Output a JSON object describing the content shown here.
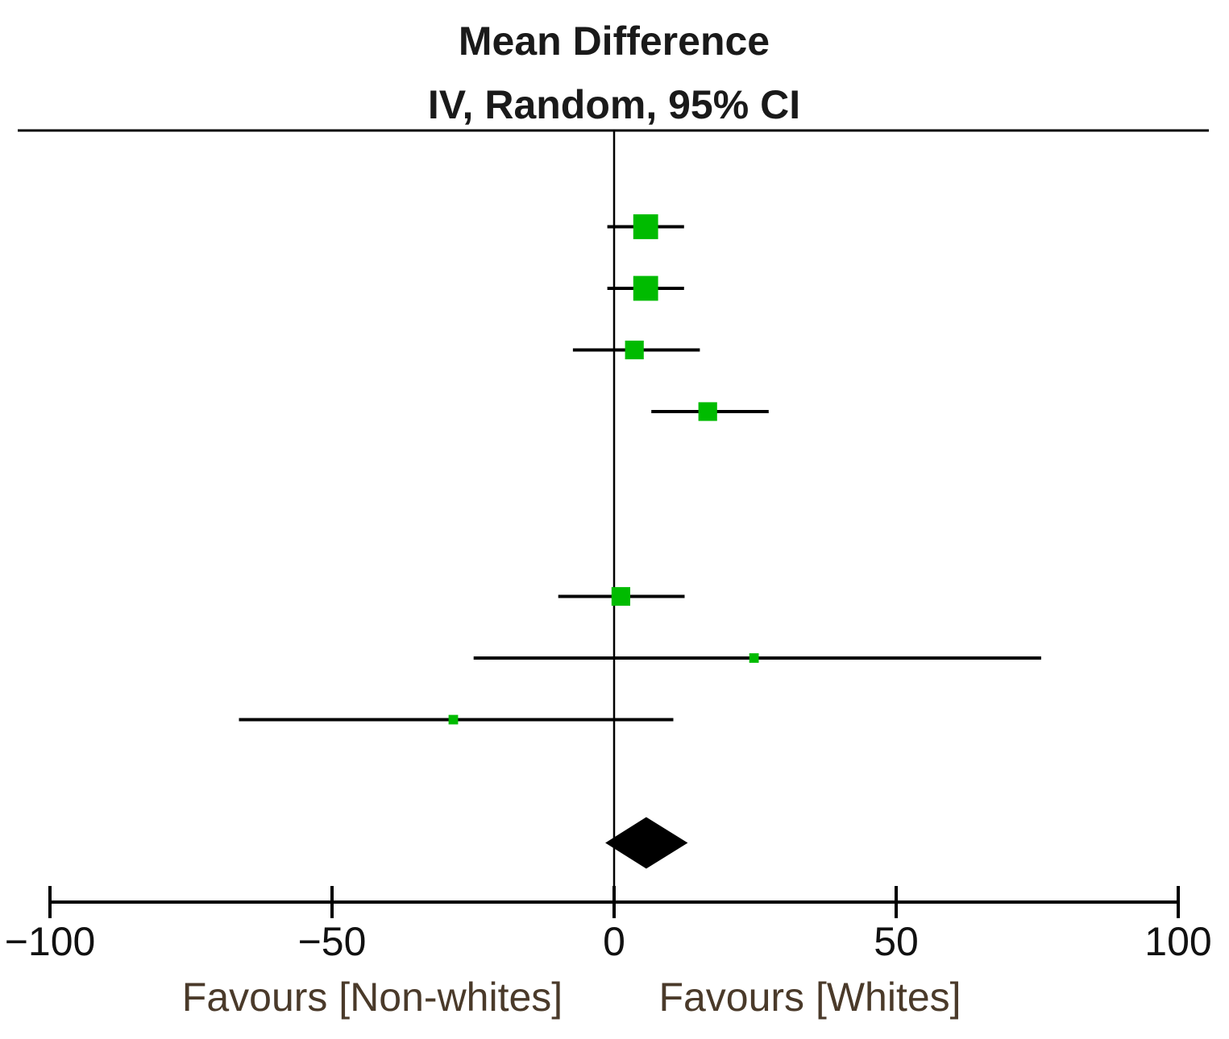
{
  "chart_data": {
    "type": "forest",
    "title": "Mean Difference",
    "subtitle": "IV, Random, 95% CI",
    "xlim": [
      -100,
      100
    ],
    "xticks": [
      -100,
      -50,
      0,
      50,
      100
    ],
    "xtick_labels": [
      "−100",
      "−50",
      "0",
      "50",
      "100"
    ],
    "favours_left": "Favours [Non-whites]",
    "favours_right": "Favours [Whites]",
    "studies": [
      {
        "row": 1,
        "mean": 5.6,
        "lower": -1.2,
        "upper": 12.4,
        "weight": 3
      },
      {
        "row": 2,
        "mean": 5.6,
        "lower": -1.2,
        "upper": 12.4,
        "weight": 3
      },
      {
        "row": 3,
        "mean": 3.6,
        "lower": -7.3,
        "upper": 15.2,
        "weight": 2
      },
      {
        "row": 4,
        "mean": 16.6,
        "lower": 6.6,
        "upper": 27.4,
        "weight": 2
      },
      {
        "row": 7,
        "mean": 1.2,
        "lower": -9.9,
        "upper": 12.5,
        "weight": 2
      },
      {
        "row": 8,
        "mean": 24.8,
        "lower": -24.9,
        "upper": 75.7,
        "weight": 0.5
      },
      {
        "row": 9,
        "mean": -28.5,
        "lower": -66.5,
        "upper": 10.5,
        "weight": 0.5
      }
    ],
    "pooled": {
      "row": 11,
      "mean": 5.7,
      "lower": 1.3,
      "upper": 10.2
    },
    "colors": {
      "study_marker": "#00bb00",
      "lines": "#000000",
      "pooled": "#000000"
    }
  }
}
